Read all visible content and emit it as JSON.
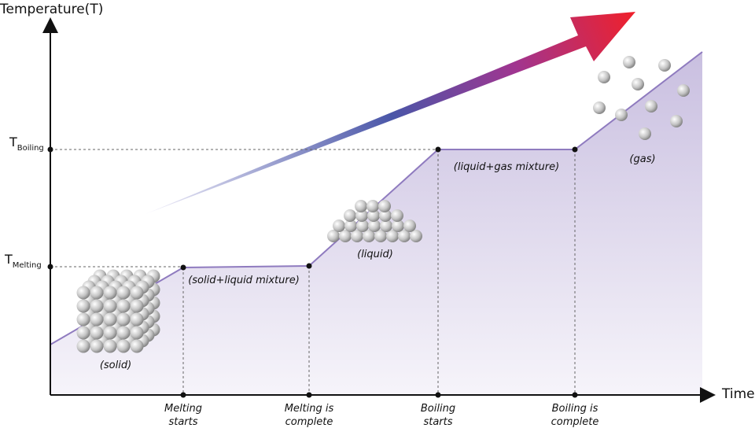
{
  "y_axis_label": "Temperature(T)",
  "x_axis_label": "Time",
  "y_levels": [
    {
      "symbol": "T",
      "subscript": "Boiling"
    },
    {
      "symbol": "T",
      "subscript": "Melting"
    }
  ],
  "phase_labels": [
    "(solid)",
    "(solid+liquid mixture)",
    "(liquid)",
    "(liquid+gas mixture)",
    "(gas)"
  ],
  "x_events": [
    [
      "Melting",
      "starts"
    ],
    [
      "Melting is",
      "complete"
    ],
    [
      "Boiling",
      "starts"
    ],
    [
      "Boiling is",
      "complete"
    ]
  ]
}
